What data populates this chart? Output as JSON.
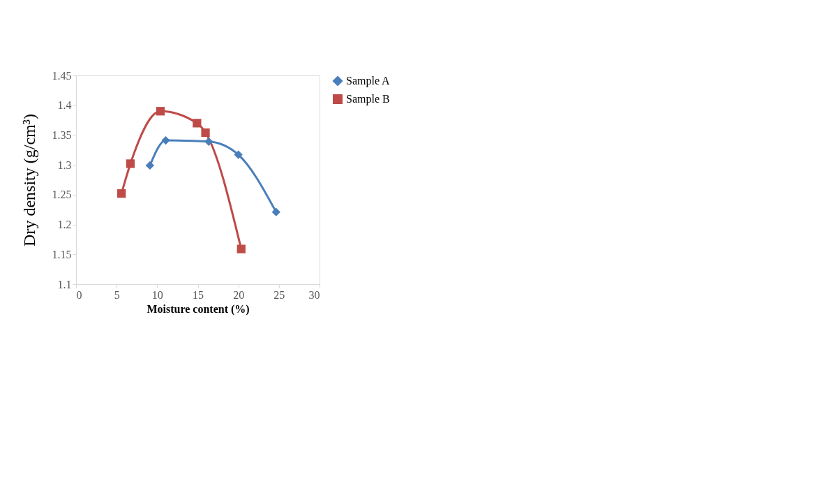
{
  "chart_data": {
    "type": "line",
    "xlabel": "Moisture content (%)",
    "ylabel": "Dry density (g/cm³)",
    "xlim": [
      0,
      30
    ],
    "xticks": [
      0,
      5,
      10,
      15,
      20,
      25,
      30
    ],
    "ylim": [
      1.1,
      1.45
    ],
    "yticks": [
      1.1,
      1.15,
      1.2,
      1.25,
      1.3,
      1.35,
      1.4,
      1.45
    ],
    "grid": false,
    "legend": "right",
    "line_style": "solid",
    "series": [
      {
        "name": "Sample A",
        "color": "#4a7ebb",
        "marker": "diamond",
        "x": [
          9.1,
          11.05,
          16.35,
          20.0,
          24.65
        ],
        "values": [
          1.299,
          1.341,
          1.339,
          1.317,
          1.221
        ]
      },
      {
        "name": "Sample B",
        "color": "#be4b48",
        "marker": "square",
        "x": [
          5.6,
          6.7,
          10.4,
          14.9,
          15.95,
          20.35
        ],
        "values": [
          1.252,
          1.302,
          1.39,
          1.37,
          1.354,
          1.159
        ]
      }
    ]
  }
}
